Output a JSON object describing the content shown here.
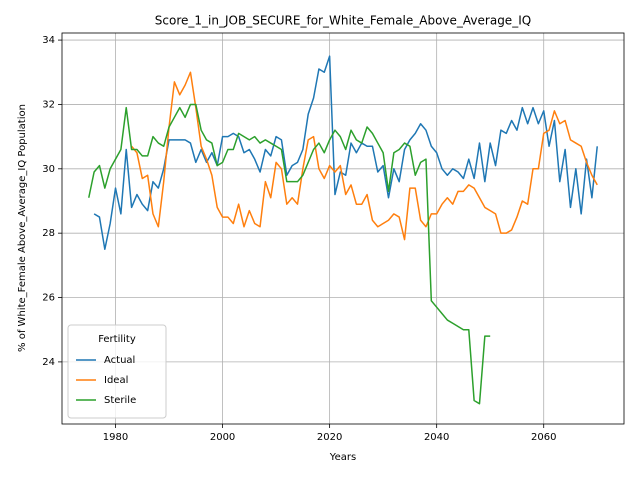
{
  "chart_data": {
    "type": "line",
    "title": "Score_1_in_JOB_SECURE_for_White_Female_Above_Average_IQ",
    "xlabel": "Years",
    "ylabel": "% of White_Female Above_Average_IQ Population",
    "x": [
      1975,
      1976,
      1977,
      1978,
      1979,
      1980,
      1981,
      1982,
      1983,
      1984,
      1985,
      1986,
      1987,
      1988,
      1989,
      1990,
      1991,
      1992,
      1993,
      1994,
      1995,
      1996,
      1997,
      1998,
      1999,
      2000,
      2001,
      2002,
      2003,
      2004,
      2005,
      2006,
      2007,
      2008,
      2009,
      2010,
      2011,
      2012,
      2013,
      2014,
      2015,
      2016,
      2017,
      2018,
      2019,
      2020,
      2021,
      2022,
      2023,
      2024,
      2025,
      2026,
      2027,
      2028,
      2029,
      2030,
      2031,
      2032,
      2033,
      2034,
      2035,
      2036,
      2037,
      2038,
      2039,
      2040,
      2041,
      2042,
      2043,
      2044,
      2045,
      2046,
      2047,
      2048,
      2049,
      2050,
      2051,
      2052,
      2053,
      2054,
      2055,
      2056,
      2057,
      2058,
      2059,
      2060,
      2061,
      2062,
      2063,
      2064,
      2065,
      2066,
      2067,
      2068,
      2069,
      2070
    ],
    "series": [
      {
        "name": "Actual",
        "color": "#1f77b4",
        "values": [
          null,
          28.6,
          28.5,
          27.5,
          28.3,
          29.4,
          28.6,
          30.6,
          28.8,
          29.2,
          28.9,
          28.7,
          29.6,
          29.4,
          30.0,
          30.9,
          30.9,
          30.9,
          30.9,
          30.8,
          30.2,
          30.6,
          30.2,
          30.5,
          30.1,
          31.0,
          31.0,
          31.1,
          31.0,
          30.5,
          30.6,
          30.3,
          29.9,
          30.6,
          30.4,
          31.0,
          30.9,
          29.8,
          30.1,
          30.2,
          30.6,
          31.7,
          32.2,
          33.1,
          33.0,
          33.5,
          29.2,
          29.9,
          29.8,
          30.8,
          30.5,
          30.8,
          30.7,
          30.7,
          29.9,
          30.1,
          29.1,
          30.0,
          29.6,
          30.6,
          30.9,
          31.1,
          31.4,
          31.2,
          30.7,
          30.5,
          30.0,
          29.8,
          30.0,
          29.9,
          29.7,
          30.3,
          29.7,
          30.8,
          29.6,
          30.8,
          30.1,
          31.2,
          31.1,
          31.5,
          31.2,
          31.9,
          31.4,
          31.9,
          31.4,
          31.8,
          30.7,
          31.5,
          29.6,
          30.6,
          28.8,
          30.0,
          28.6,
          30.3,
          29.1,
          30.7
        ]
      },
      {
        "name": "Ideal",
        "color": "#ff7f0e",
        "values": [
          null,
          null,
          null,
          null,
          null,
          null,
          null,
          null,
          30.7,
          30.5,
          29.7,
          29.8,
          28.6,
          28.2,
          29.6,
          31.3,
          32.7,
          32.3,
          32.6,
          33.0,
          31.9,
          30.7,
          30.3,
          29.8,
          28.8,
          28.5,
          28.5,
          28.3,
          28.9,
          28.2,
          28.7,
          28.3,
          28.2,
          29.6,
          29.1,
          30.2,
          30.0,
          28.9,
          29.1,
          28.9,
          30.0,
          30.9,
          31.0,
          30.0,
          29.7,
          30.1,
          29.9,
          30.1,
          29.2,
          29.5,
          28.9,
          28.9,
          29.2,
          28.4,
          28.2,
          28.3,
          28.4,
          28.6,
          28.5,
          27.8,
          29.4,
          29.4,
          28.4,
          28.2,
          28.6,
          28.6,
          28.9,
          29.1,
          28.9,
          29.3,
          29.3,
          29.5,
          29.4,
          29.1,
          28.8,
          28.7,
          28.6,
          28.0,
          28.0,
          28.1,
          28.5,
          29.0,
          28.9,
          30.0,
          30.0,
          31.1,
          31.2,
          31.8,
          31.4,
          31.5,
          30.9,
          30.8,
          30.7,
          30.2,
          29.8,
          29.5
        ]
      },
      {
        "name": "Sterile",
        "color": "#2ca02c",
        "values": [
          29.1,
          29.9,
          30.1,
          29.4,
          30.0,
          30.3,
          30.6,
          31.9,
          30.6,
          30.6,
          30.4,
          30.4,
          31.0,
          30.8,
          30.7,
          31.3,
          31.6,
          31.9,
          31.6,
          32.0,
          32.0,
          31.2,
          30.9,
          30.8,
          30.1,
          30.2,
          30.6,
          30.6,
          31.1,
          31.0,
          30.9,
          31.0,
          30.8,
          30.9,
          30.8,
          30.7,
          30.6,
          29.6,
          29.6,
          29.6,
          29.8,
          30.2,
          30.6,
          30.8,
          30.5,
          30.9,
          31.2,
          31.0,
          30.6,
          31.2,
          30.9,
          30.8,
          31.3,
          31.1,
          30.8,
          30.5,
          29.3,
          30.5,
          30.6,
          30.8,
          30.7,
          29.8,
          30.2,
          30.3,
          25.9,
          25.7,
          25.5,
          25.3,
          25.2,
          25.1,
          25.0,
          25.0,
          22.8,
          22.7,
          24.8,
          24.8,
          null,
          null,
          null,
          null,
          null,
          null,
          null,
          null,
          null,
          null,
          null,
          null,
          null,
          null,
          null,
          null,
          null,
          null,
          null,
          null
        ]
      }
    ],
    "xlim": [
      1970,
      2075
    ],
    "xticks": [
      1980,
      2000,
      2020,
      2040,
      2060
    ],
    "ylim": [
      22.07,
      34.22
    ],
    "yticks": [
      24,
      26,
      28,
      30,
      32,
      34
    ],
    "grid": true,
    "legend_title": "Fertility",
    "legend_position": "lower left"
  }
}
